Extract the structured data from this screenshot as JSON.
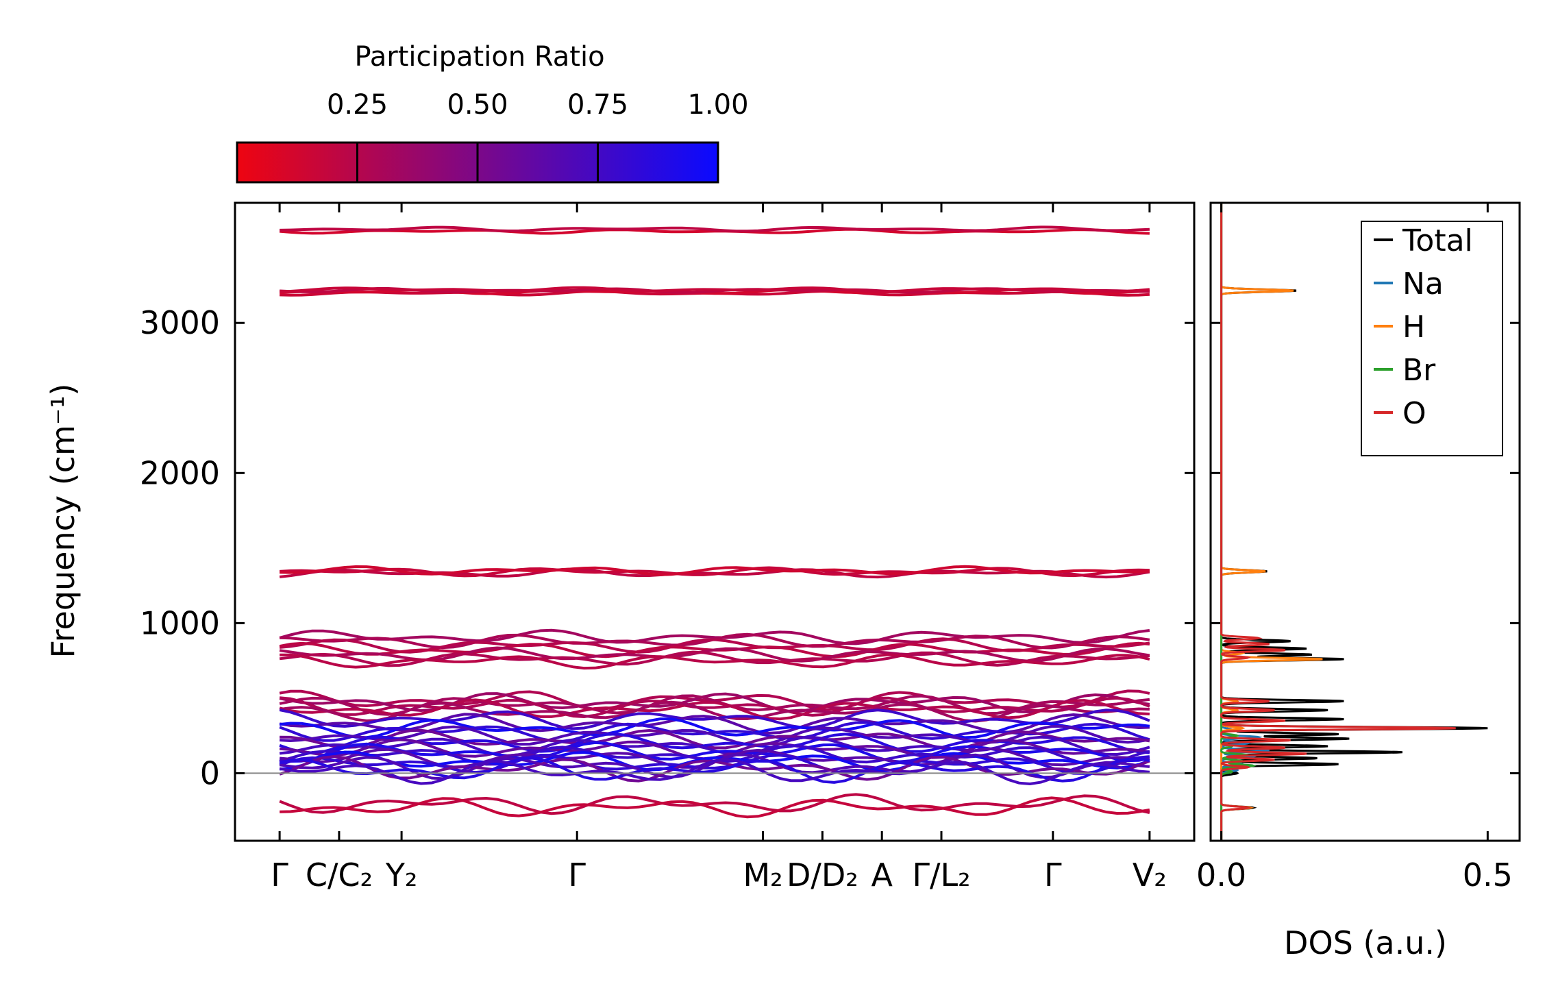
{
  "chart_data": [
    {
      "type": "line",
      "panel": "band-structure",
      "title": "",
      "ylabel": "Frequency (cm⁻¹)",
      "yticks": [
        0,
        1000,
        2000,
        3000
      ],
      "ylim": [
        -450,
        3800
      ],
      "xlim": [
        -0.3,
        6.15
      ],
      "grid": false,
      "zero_line": true,
      "x_ticks": [
        {
          "x": 0.0,
          "label": "Γ"
        },
        {
          "x": 0.4,
          "label": "C/C₂"
        },
        {
          "x": 0.82,
          "label": "Y₂"
        },
        {
          "x": 2.0,
          "label": "Γ"
        },
        {
          "x": 3.25,
          "label": "M₂"
        },
        {
          "x": 3.65,
          "label": "D/D₂"
        },
        {
          "x": 4.05,
          "label": "A"
        },
        {
          "x": 4.45,
          "label": "Γ/L₂"
        },
        {
          "x": 5.2,
          "label": "Γ"
        },
        {
          "x": 5.85,
          "label": "V₂"
        }
      ],
      "colorbar": {
        "label": "Participation Ratio",
        "ticks": [
          "0.25",
          "0.50",
          "0.75",
          "1.00"
        ],
        "tick_values": [
          0.25,
          0.5,
          0.75,
          1.0
        ],
        "range": [
          0.0,
          1.0
        ],
        "color_low": "#ee0511",
        "color_high": "#0a0aff"
      },
      "band_groups": [
        {
          "freqs": [
            3610,
            3625
          ],
          "pr": 0.12
        },
        {
          "freqs": [
            3198,
            3208,
            3216,
            3222
          ],
          "pr": 0.12
        },
        {
          "freqs": [
            1333,
            1342,
            1350
          ],
          "pr": 0.14
        },
        {
          "freqs": [
            908,
            880,
            850,
            820,
            790,
            762,
            745
          ],
          "pr": 0.22
        },
        {
          "freqs": [
            485,
            470,
            455,
            440,
            425,
            410
          ],
          "pr": 0.25
        },
        {
          "freqs": [
            360,
            330,
            300,
            275,
            250,
            225,
            200,
            180,
            160,
            140,
            120,
            100,
            80,
            60,
            45,
            30,
            20,
            10
          ],
          "pr": 0.55
        },
        {
          "freqs": [
            -205,
            -228
          ],
          "pr": 0.12
        }
      ]
    },
    {
      "type": "line",
      "panel": "density-of-states",
      "xlabel": "DOS (a.u.)",
      "xticks": [
        "0.0",
        "0.5"
      ],
      "xlim": [
        -0.02,
        0.56
      ],
      "ylim": [
        -450,
        3800
      ],
      "legend_position": "top-right",
      "series": [
        {
          "name": "Total",
          "color": "#000000",
          "peaks": [
            [
              -230,
              0.06
            ],
            [
              0,
              0.03
            ],
            [
              60,
              0.22
            ],
            [
              100,
              0.18
            ],
            [
              140,
              0.34
            ],
            [
              180,
              0.2
            ],
            [
              230,
              0.24
            ],
            [
              260,
              0.22
            ],
            [
              300,
              0.5
            ],
            [
              360,
              0.23
            ],
            [
              420,
              0.2
            ],
            [
              480,
              0.23
            ],
            [
              760,
              0.23
            ],
            [
              790,
              0.17
            ],
            [
              830,
              0.16
            ],
            [
              880,
              0.13
            ],
            [
              1345,
              0.085
            ],
            [
              3215,
              0.14
            ]
          ]
        },
        {
          "name": "Na",
          "color": "#1f77b4",
          "peaks": [
            [
              20,
              0.03
            ],
            [
              60,
              0.04
            ],
            [
              110,
              0.06
            ],
            [
              150,
              0.09
            ],
            [
              200,
              0.05
            ],
            [
              240,
              0.07
            ],
            [
              290,
              0.02
            ]
          ]
        },
        {
          "name": "H",
          "color": "#ff7f0e",
          "peaks": [
            [
              -230,
              0.055
            ],
            [
              300,
              0.04
            ],
            [
              420,
              0.03
            ],
            [
              480,
              0.03
            ],
            [
              760,
              0.19
            ],
            [
              800,
              0.04
            ],
            [
              1345,
              0.082
            ],
            [
              3215,
              0.135
            ]
          ]
        },
        {
          "name": "Br",
          "color": "#2ca02c",
          "peaks": [
            [
              10,
              0.02
            ],
            [
              50,
              0.06
            ],
            [
              80,
              0.04
            ],
            [
              120,
              0.05
            ],
            [
              180,
              0.02
            ],
            [
              250,
              0.03
            ]
          ]
        },
        {
          "name": "O",
          "color": "#d62728",
          "peaks": [
            [
              -230,
              0.05
            ],
            [
              40,
              0.05
            ],
            [
              90,
              0.1
            ],
            [
              130,
              0.16
            ],
            [
              170,
              0.12
            ],
            [
              220,
              0.13
            ],
            [
              300,
              0.44
            ],
            [
              350,
              0.12
            ],
            [
              420,
              0.1
            ],
            [
              480,
              0.09
            ],
            [
              770,
              0.05
            ],
            [
              820,
              0.12
            ],
            [
              860,
              0.09
            ],
            [
              900,
              0.07
            ]
          ]
        }
      ]
    }
  ]
}
